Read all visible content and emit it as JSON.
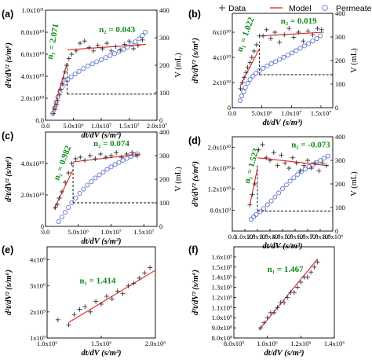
{
  "legend": [
    {
      "label": "Data",
      "marker": "plus",
      "color": "#333333"
    },
    {
      "label": "Model",
      "marker": "line",
      "color": "#e32020"
    },
    {
      "label": "Permeate volume (V)",
      "marker": "circle",
      "color": "#5566cc"
    }
  ],
  "colors": {
    "data": "#333333",
    "model": "#e32020",
    "volume": "#5566cc",
    "annotation": "#138a1b"
  },
  "chart_data": [
    {
      "panel": "(a)",
      "type": "scatter",
      "xlabel": "dt/dV (s/m³)",
      "ylabel": "d²t/dV² (s/m⁶)",
      "y2label": "V (mL)",
      "xlim": [
        0,
        20000000
      ],
      "ylim": [
        0,
        100000000000
      ],
      "y2lim": [
        0,
        400
      ],
      "xticks": [
        0,
        5000000,
        10000000,
        15000000,
        20000000
      ],
      "xtick_labels": [
        "0.0",
        "5.0x10⁶",
        "1.0x10⁷",
        "1.5x10⁷",
        "2.0x10⁷"
      ],
      "yticks": [
        0,
        20000000000,
        40000000000,
        60000000000,
        80000000000,
        100000000000
      ],
      "ytick_labels": [
        "0.0",
        "2.0x10¹⁰",
        "4.0x10¹⁰",
        "6.0x10¹⁰",
        "8.0x10¹⁰",
        "1.0x10¹¹"
      ],
      "y2ticks": [
        0,
        100,
        200,
        300,
        400
      ],
      "y2tick_labels": [
        "0",
        "100",
        "200",
        "300",
        "400"
      ],
      "data": {
        "x": [
          1400000,
          1700000,
          2000000,
          2200000,
          2500000,
          2700000,
          3000000,
          3300000,
          3500000,
          3800000,
          4200000,
          4700000,
          5500000,
          6200000,
          7000000,
          7800000,
          8600000,
          9400000,
          10200000,
          11000000,
          11800000,
          12600000,
          13400000,
          14200000,
          15000000,
          15800000,
          16600000,
          17400000
        ],
        "y": [
          6000000000,
          10000000000,
          14000000000,
          18000000000,
          23000000000,
          28000000000,
          33000000000,
          38000000000,
          44000000000,
          50000000000,
          56000000000,
          60000000000,
          63000000000,
          70000000000,
          72000000000,
          66000000000,
          63000000000,
          68000000000,
          65000000000,
          70000000000,
          63000000000,
          67000000000,
          64000000000,
          69000000000,
          72000000000,
          65000000000,
          68000000000,
          73000000000
        ]
      },
      "model": [
        {
          "x": [
            1300000,
            3900000
          ],
          "y": [
            8000000000,
            52000000000
          ]
        },
        {
          "x": [
            3900000,
            18000000
          ],
          "y": [
            64000000000,
            69000000000
          ]
        }
      ],
      "volume": {
        "x": [
          1300000,
          1600000,
          1900000,
          2200000,
          2600000,
          3000000,
          3500000,
          4000000,
          4600000,
          5300000,
          6000000,
          6800000,
          7600000,
          8400000,
          9200000,
          10000000,
          10800000,
          11600000,
          12400000,
          13200000,
          14000000,
          14700000,
          15400000,
          16100000,
          16800000,
          17400000,
          17900000
        ],
        "y": [
          25,
          45,
          65,
          85,
          105,
          120,
          135,
          148,
          158,
          168,
          178,
          188,
          197,
          205,
          213,
          220,
          228,
          235,
          242,
          250,
          258,
          266,
          275,
          285,
          296,
          308,
          320
        ]
      },
      "guides": [
        {
          "x": [
            3900000,
            3900000
          ],
          "y2": [
            95,
            200
          ]
        },
        {
          "x": [
            3900000,
            20000000
          ],
          "y2": [
            95,
            95
          ]
        }
      ],
      "annotations": [
        {
          "text": "n₁ = 2.071",
          "x": 1200000,
          "y": 55000000000,
          "rotate": -80
        },
        {
          "text": "n₂ = 0.043",
          "x": 9600000,
          "y": 80000000000
        }
      ]
    },
    {
      "panel": "(b)",
      "type": "scatter",
      "xlabel": "dt/dV (s/m³)",
      "ylabel": "d²t/dV² (s/m⁶)",
      "y2label": "V (mL)",
      "xlim": [
        0,
        17000000
      ],
      "ylim": [
        0,
        75000000000
      ],
      "y2lim": [
        0,
        400
      ],
      "xticks": [
        0,
        5000000,
        10000000,
        15000000
      ],
      "xtick_labels": [
        "0.0",
        "5.0x10⁶",
        "1.0x10⁷",
        "1.5x10⁷"
      ],
      "yticks": [
        0,
        20000000000,
        40000000000,
        60000000000
      ],
      "ytick_labels": [
        "0",
        "2x10¹⁰",
        "4x10¹⁰",
        "6x10¹⁰"
      ],
      "y2ticks": [
        0,
        100,
        200,
        300,
        400
      ],
      "y2tick_labels": [
        "0",
        "100",
        "200",
        "300",
        "400"
      ],
      "data": {
        "x": [
          1400000,
          1700000,
          2000000,
          2300000,
          2600000,
          3000000,
          3300000,
          3700000,
          4100000,
          4600000,
          5200000,
          5800000,
          6500000,
          7200000,
          8000000,
          8800000,
          9600000,
          10400000,
          11200000,
          12000000,
          12800000,
          13600000,
          14400000,
          15100000
        ],
        "y": [
          15000000000,
          20000000000,
          24000000000,
          28000000000,
          32000000000,
          36000000000,
          40000000000,
          45000000000,
          50000000000,
          57000000000,
          57000000000,
          62000000000,
          55000000000,
          60000000000,
          52000000000,
          58000000000,
          63000000000,
          56000000000,
          60000000000,
          53000000000,
          61000000000,
          58000000000,
          63000000000,
          62000000000
        ]
      },
      "model": [
        {
          "x": [
            1300000,
            4600000
          ],
          "y": [
            17000000000,
            47000000000
          ]
        },
        {
          "x": [
            4600000,
            15500000
          ],
          "y": [
            57000000000,
            60000000000
          ]
        }
      ],
      "volume": {
        "x": [
          1300000,
          1600000,
          1900000,
          2200000,
          2600000,
          3000000,
          3500000,
          4000000,
          4600000,
          5200000,
          5900000,
          6600000,
          7300000,
          8000000,
          8700000,
          9400000,
          10100000,
          10800000,
          11500000,
          12200000,
          12900000,
          13600000,
          14300000,
          14900000
        ],
        "y": [
          30,
          50,
          68,
          86,
          104,
          120,
          134,
          146,
          157,
          167,
          177,
          187,
          196,
          205,
          214,
          223,
          232,
          242,
          252,
          262,
          272,
          283,
          293,
          305
        ]
      },
      "guides": [
        {
          "x": [
            4600000,
            4600000
          ],
          "y2": [
            140,
            280
          ]
        },
        {
          "x": [
            4600000,
            17000000
          ],
          "y2": [
            140,
            140
          ]
        }
      ],
      "annotations": [
        {
          "text": "n₁ = 1.022",
          "x": 1600000,
          "y": 44000000000,
          "rotate": -70
        },
        {
          "text": "n₂ = 0.019",
          "x": 8200000,
          "y": 67000000000
        }
      ]
    },
    {
      "panel": "(c)",
      "type": "scatter",
      "xlabel": "dt/dV (s/m³)",
      "ylabel": "d²t/dV² (s/m⁶)",
      "y2label": "V (mL)",
      "xlim": [
        0,
        17000000
      ],
      "ylim": [
        0,
        60000000000
      ],
      "y2lim": [
        0,
        400
      ],
      "xticks": [
        0,
        5000000,
        10000000,
        15000000
      ],
      "xtick_labels": [
        "0.0",
        "5.0x10⁶",
        "1.0x10⁷",
        "1.5x10⁷"
      ],
      "yticks": [
        0,
        20000000000,
        40000000000
      ],
      "ytick_labels": [
        "0",
        "2.0x10¹⁰",
        "4.0x10¹⁰"
      ],
      "y2ticks": [
        0,
        100,
        200,
        300,
        400
      ],
      "y2tick_labels": [
        "0",
        "100",
        "200",
        "300",
        "400"
      ],
      "data": {
        "x": [
          1500000,
          1800000,
          2100000,
          2500000,
          3000000,
          3500000,
          4000000,
          4600000,
          5300000,
          6000000,
          6800000,
          7600000,
          8400000,
          9200000,
          10000000,
          10800000,
          11600000,
          12400000,
          13200000,
          14000000
        ],
        "y": [
          12000000000,
          14000000000,
          18000000000,
          22000000000,
          28000000000,
          34000000000,
          40000000000,
          43000000000,
          44000000000,
          42000000000,
          45000000000,
          43000000000,
          46000000000,
          44000000000,
          45000000000,
          47000000000,
          44000000000,
          46000000000,
          47000000000,
          45000000000
        ]
      },
      "model": [
        {
          "x": [
            1300000,
            4200000
          ],
          "y": [
            11000000000,
            36000000000
          ]
        },
        {
          "x": [
            4200000,
            14500000
          ],
          "y": [
            41000000000,
            46000000000
          ]
        }
      ],
      "volume": {
        "x": [
          2000000,
          2500000,
          3000000,
          3500000,
          4000000,
          4600000,
          5200000,
          5800000,
          6400000,
          7000000,
          7600000,
          8200000,
          8800000,
          9400000,
          10000000,
          10600000,
          11200000,
          11800000,
          12400000,
          13000000,
          13600000,
          14000000
        ],
        "y": [
          20,
          40,
          60,
          80,
          100,
          120,
          140,
          158,
          175,
          190,
          205,
          218,
          230,
          242,
          252,
          262,
          271,
          280,
          288,
          296,
          303,
          308
        ]
      },
      "guides": [
        {
          "x": [
            4200000,
            4200000
          ],
          "y2": [
            100,
            270
          ]
        },
        {
          "x": [
            4200000,
            17000000
          ],
          "y2": [
            100,
            100
          ]
        }
      ],
      "annotations": [
        {
          "text": "n₁ = 0.982",
          "x": 2000000,
          "y": 29000000000,
          "rotate": -70
        },
        {
          "text": "n₂ = 0.074",
          "x": 7300000,
          "y": 51000000000
        }
      ]
    },
    {
      "panel": "(d)",
      "type": "scatter",
      "xlabel": "dt/dV (s/m³)",
      "ylabel": "d²t/dV² (s/m⁶)",
      "y2label": "V (mL)",
      "xlim": [
        0,
        8000000
      ],
      "ylim": [
        4000000000,
        22000000000
      ],
      "y2lim": [
        0,
        400
      ],
      "xticks": [
        0,
        1000000,
        2000000,
        3000000,
        4000000,
        5000000,
        6000000,
        7000000,
        8000000
      ],
      "xtick_labels": [
        "0.0",
        "1.0x10⁶",
        "2.0x10⁶",
        "3.0x10⁶",
        "4.0x10⁶",
        "5.0x10⁶",
        "6.0x10⁶",
        "7.0x10⁶",
        "8.0x10⁶"
      ],
      "yticks": [
        8000000000,
        12000000000,
        16000000000,
        20000000000
      ],
      "ytick_labels": [
        "8.0x10⁹",
        "1.2x10¹⁰",
        "1.6x10¹⁰",
        "2.0x10¹⁰"
      ],
      "y2ticks": [
        0,
        100,
        200,
        300,
        400
      ],
      "y2tick_labels": [
        "0",
        "100",
        "200",
        "300",
        "400"
      ],
      "data": {
        "x": [
          1400000,
          1600000,
          1800000,
          2100000,
          2400000,
          2700000,
          3000000,
          3300000,
          3600000,
          3900000,
          4200000,
          4500000,
          4800000,
          5100000,
          5400000,
          5700000,
          6000000,
          6300000,
          6600000,
          6900000,
          7200000,
          7500000
        ],
        "y": [
          9000000000,
          11000000000,
          13000000000,
          19500000000,
          20500000000,
          18000000000,
          17500000000,
          19000000000,
          16500000000,
          18500000000,
          17000000000,
          16000000000,
          18000000000,
          17000000000,
          15500000000,
          16500000000,
          17500000000,
          16000000000,
          17000000000,
          15500000000,
          17000000000,
          16500000000
        ]
      },
      "model": [
        {
          "x": [
            1400000,
            2000000
          ],
          "y": [
            9000000000,
            16000000000
          ]
        },
        {
          "x": [
            2000000,
            7600000
          ],
          "y": [
            18000000000,
            16500000000
          ]
        }
      ],
      "volume": {
        "x": [
          1500000,
          1700000,
          1900000,
          2200000,
          2500000,
          2800000,
          3100000,
          3400000,
          3700000,
          4000000,
          4300000,
          4600000,
          4900000,
          5200000,
          5500000,
          5800000,
          6100000,
          6400000,
          6700000,
          7000000,
          7300000,
          7600000
        ],
        "y": [
          50,
          60,
          70,
          82,
          96,
          112,
          128,
          145,
          162,
          180,
          196,
          212,
          226,
          240,
          252,
          263,
          273,
          282,
          291,
          300,
          309,
          318
        ]
      },
      "guides": [
        {
          "x": [
            2000000,
            2000000
          ],
          "y2": [
            85,
            280
          ]
        },
        {
          "x": [
            2000000,
            8000000
          ],
          "y2": [
            85,
            85
          ]
        }
      ],
      "annotations": [
        {
          "text": "n₁ = 1.523",
          "x": 1350000,
          "y": 13000000000,
          "rotate": -75
        },
        {
          "text": "n₂ = -0.073",
          "x": 4700000,
          "y": 20000000000
        }
      ]
    },
    {
      "panel": "(e)",
      "type": "scatter",
      "xlabel": "dt/dV (s/m³)",
      "ylabel": "d²t/dV² (s/m⁶)",
      "xlim": [
        1000000,
        2000000
      ],
      "ylim": [
        1000000000,
        4500000000
      ],
      "xticks": [
        1000000,
        1500000,
        2000000
      ],
      "xtick_labels": [
        "1.0x10⁶",
        "1.5x10⁶",
        "2.0x10⁶"
      ],
      "yticks": [
        1000000000,
        2000000000,
        3000000000,
        4000000000
      ],
      "ytick_labels": [
        "1x10⁹",
        "2x10⁹",
        "3x10⁹",
        "4x10⁹"
      ],
      "data": {
        "x": [
          1100000,
          1200000,
          1250000,
          1300000,
          1350000,
          1400000,
          1450000,
          1500000,
          1550000,
          1600000,
          1650000,
          1700000,
          1750000,
          1800000,
          1850000,
          1900000,
          1950000
        ],
        "y": [
          1700000000,
          1500000000,
          1900000000,
          2100000000,
          2200000000,
          2000000000,
          2400000000,
          2300000000,
          2600000000,
          2500000000,
          2800000000,
          2700000000,
          3000000000,
          3100000000,
          3300000000,
          3500000000,
          3700000000
        ]
      },
      "model": [
        {
          "x": [
            1200000,
            2000000
          ],
          "y": [
            1600000000,
            3600000000
          ]
        }
      ],
      "annotations": [
        {
          "text": "n₁ = 1.414",
          "x": 1300000,
          "y": 3100000000
        }
      ]
    },
    {
      "panel": "(f)",
      "type": "scatter",
      "xlabel": "dt/dV (s/m³)",
      "ylabel": "d²t/dV² (s/m⁶)",
      "xlim": [
        800000,
        1400000
      ],
      "ylim": [
        800000000,
        1700000000
      ],
      "xticks": [
        800000,
        1000000,
        1200000,
        1400000
      ],
      "xtick_labels": [
        "8.0x10⁵",
        "1.0x10⁶",
        "1.2x10⁶",
        "1.4x10⁶"
      ],
      "yticks": [
        800000000,
        900000000,
        1000000000,
        1100000000,
        1200000000,
        1300000000,
        1400000000,
        1500000000,
        1600000000
      ],
      "ytick_labels": [
        "8.0x10⁸",
        "9.0x10⁸",
        "1.0x10⁹",
        "1.1x10⁹",
        "1.2x10⁹",
        "1.3x10⁹",
        "1.4x10⁹",
        "1.5x10⁹",
        "1.6x10⁹"
      ],
      "data": {
        "x": [
          960000,
          980000,
          1000000,
          1020000,
          1040000,
          1060000,
          1080000,
          1100000,
          1120000,
          1140000,
          1160000,
          1180000,
          1200000,
          1220000,
          1240000,
          1260000,
          1280000,
          1300000
        ],
        "y": [
          900000000,
          950000000,
          1000000000,
          1050000000,
          1050000000,
          1100000000,
          1150000000,
          1150000000,
          1200000000,
          1250000000,
          1250000000,
          1300000000,
          1350000000,
          1400000000,
          1400000000,
          1450000000,
          1500000000,
          1550000000
        ]
      },
      "model": [
        {
          "x": [
            950000,
            1300000
          ],
          "y": [
            880000000,
            1580000000
          ]
        }
      ],
      "annotations": [
        {
          "text": "n₁ = 1.467",
          "x": 1000000,
          "y": 1450000000
        }
      ]
    }
  ]
}
